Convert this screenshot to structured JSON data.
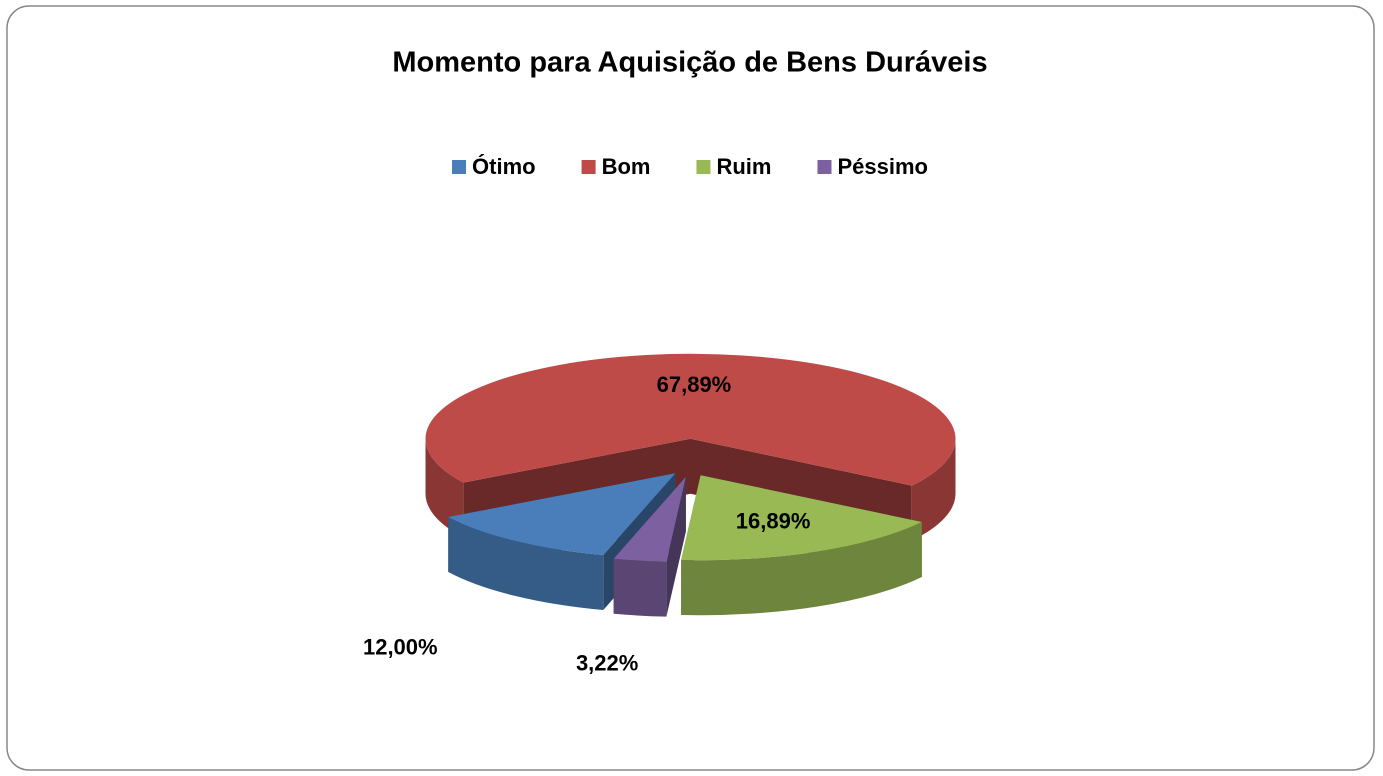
{
  "chart_data": {
    "type": "pie3d",
    "title": "Momento para Aquisição de Bens Duráveis",
    "categories": [
      "Ótimo",
      "Bom",
      "Ruim",
      "Péssimo"
    ],
    "values": [
      12.0,
      67.89,
      16.89,
      3.22
    ],
    "value_labels": [
      "12,00%",
      "67,89%",
      "16,89%",
      "3,22%"
    ],
    "colors": [
      "#4a7ebb",
      "#be4b48",
      "#98b954",
      "#7d60a0"
    ],
    "legend": "top"
  }
}
